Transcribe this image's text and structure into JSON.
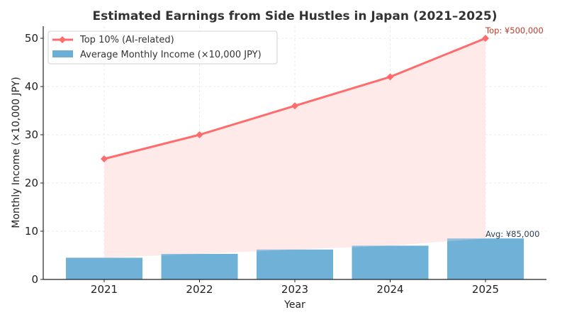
{
  "chart_data": {
    "type": "bar+line",
    "title": "Estimated Earnings from Side Hustles in Japan (2021–2025)",
    "xlabel": "Year",
    "ylabel": "Monthly Income (×10,000 JPY)",
    "categories": [
      "2021",
      "2022",
      "2023",
      "2024",
      "2025"
    ],
    "ylim": [
      0,
      52.5
    ],
    "yticks": [
      0,
      10,
      20,
      30,
      40,
      50
    ],
    "grid": true,
    "legend_position": "upper left",
    "series": [
      {
        "name": "Top 10% (AI-related)",
        "type": "line",
        "marker": "diamond",
        "color": "#ff6b6b",
        "fill_color": "#ffeaea",
        "values": [
          25,
          30,
          36,
          42,
          50
        ]
      },
      {
        "name": "Average Monthly Income (×10,000 JPY)",
        "type": "bar",
        "color": "#6baed6",
        "values": [
          4.5,
          5.3,
          6.2,
          7.0,
          8.5
        ]
      }
    ],
    "annotations": [
      {
        "text": "Top: ¥500,000",
        "x": "2025",
        "y": 50,
        "color": "#c0392b"
      },
      {
        "text": "Avg: ¥85,000",
        "x": "2025",
        "y": 8.5,
        "color": "#2c3e50"
      }
    ]
  }
}
